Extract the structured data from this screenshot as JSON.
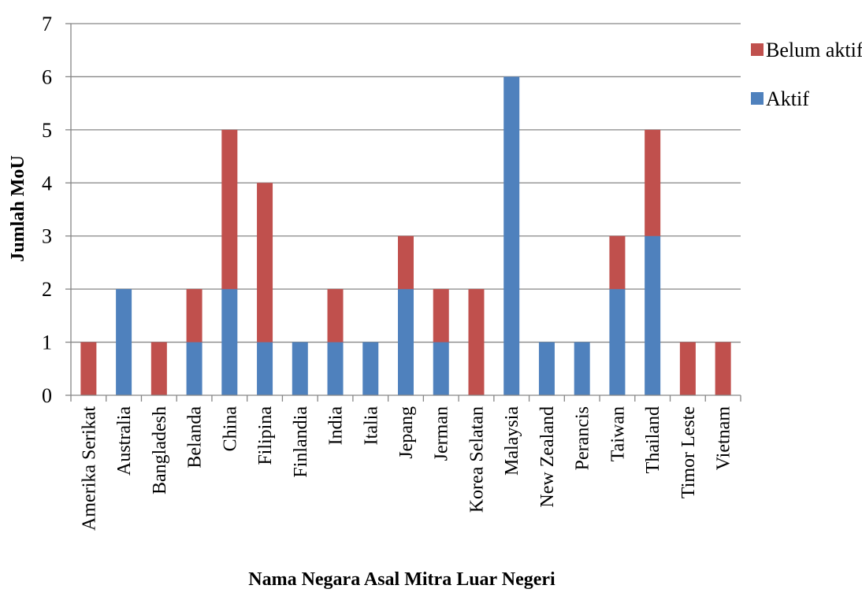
{
  "chart_data": {
    "type": "bar",
    "stacked": true,
    "title": "",
    "xlabel": "Nama Negara Asal Mitra  Luar Negeri",
    "ylabel": "Jumlah MoU",
    "ylim": [
      0,
      7
    ],
    "yticks": [
      "0",
      "1",
      "2",
      "3",
      "4",
      "5",
      "6",
      "7"
    ],
    "grid": true,
    "legend_position": "right",
    "categories": [
      "Amerika Serikat",
      "Australia",
      "Bangladesh",
      "Belanda",
      "China",
      "Filipina",
      "Finlandia",
      "India",
      "Italia",
      "Jepang",
      "Jerman",
      "Korea Selatan",
      "Malaysia",
      "New Zealand",
      "Perancis",
      "Taiwan",
      "Thailand",
      "Timor Leste",
      "Vietnam"
    ],
    "series": [
      {
        "name": "Aktif",
        "color": "#4f81bd",
        "values": [
          0,
          2,
          0,
          1,
          2,
          1,
          1,
          1,
          1,
          2,
          1,
          0,
          6,
          1,
          1,
          2,
          3,
          0,
          0
        ]
      },
      {
        "name": "Belum aktif",
        "color": "#c0504d",
        "values": [
          1,
          0,
          1,
          1,
          3,
          3,
          0,
          1,
          0,
          1,
          1,
          2,
          0,
          0,
          0,
          1,
          2,
          1,
          1
        ]
      }
    ],
    "legend_order": [
      "Belum aktif",
      "Aktif"
    ]
  }
}
